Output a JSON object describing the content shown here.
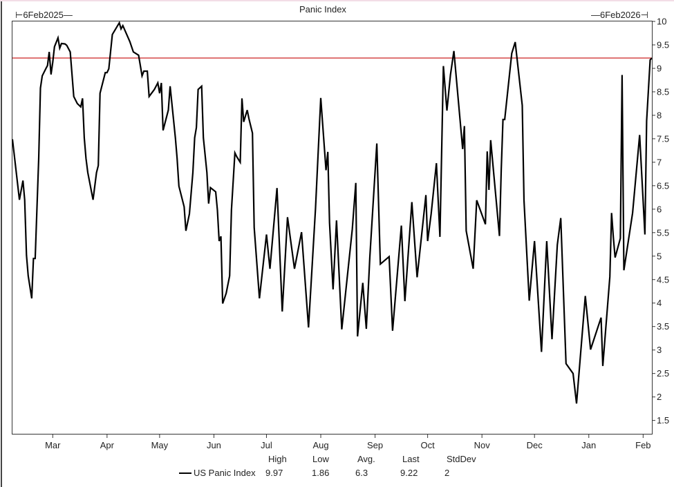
{
  "chart_data": {
    "type": "line",
    "title": "Panic Index",
    "start_label": "6Feb2025",
    "end_label": "6Feb2026",
    "xlabel": "",
    "ylabel": "",
    "xlim": [
      "2025-02-06",
      "2026-02-06"
    ],
    "ylim": [
      1.2,
      10
    ],
    "yticks": [
      1.5,
      2,
      2.5,
      3,
      3.5,
      4,
      4.5,
      5,
      5.5,
      6,
      6.5,
      7,
      7.5,
      8,
      8.5,
      9,
      9.5,
      10
    ],
    "xticks": [
      {
        "date": "2025-03-01",
        "label": "Mar"
      },
      {
        "date": "2025-04-01",
        "label": "Apr"
      },
      {
        "date": "2025-05-01",
        "label": "May"
      },
      {
        "date": "2025-06-01",
        "label": "Jun"
      },
      {
        "date": "2025-07-01",
        "label": "Jul"
      },
      {
        "date": "2025-08-01",
        "label": "Aug"
      },
      {
        "date": "2025-09-01",
        "label": "Sep"
      },
      {
        "date": "2025-10-01",
        "label": "Oct"
      },
      {
        "date": "2025-11-01",
        "label": "Nov"
      },
      {
        "date": "2025-12-01",
        "label": "Dec"
      },
      {
        "date": "2026-01-01",
        "label": "Jan"
      },
      {
        "date": "2026-02-01",
        "label": "Feb"
      }
    ],
    "grid": false,
    "reference_line": {
      "value": 9.22,
      "color": "#cc2222"
    },
    "legend_position": "bottom",
    "series": [
      {
        "name": "US Panic Index",
        "color": "#000000",
        "points": [
          [
            "2025-02-06",
            7.49
          ],
          [
            "2025-02-10",
            6.2
          ],
          [
            "2025-02-12",
            6.61
          ],
          [
            "2025-02-13",
            6.2
          ],
          [
            "2025-02-14",
            5.02
          ],
          [
            "2025-02-15",
            4.58
          ],
          [
            "2025-02-17",
            4.1
          ],
          [
            "2025-02-18",
            4.95
          ],
          [
            "2025-02-19",
            4.95
          ],
          [
            "2025-02-21",
            7.08
          ],
          [
            "2025-02-22",
            8.58
          ],
          [
            "2025-02-23",
            8.84
          ],
          [
            "2025-02-25",
            8.99
          ],
          [
            "2025-02-26",
            9.06
          ],
          [
            "2025-02-27",
            9.35
          ],
          [
            "2025-02-28",
            8.87
          ],
          [
            "2025-03-01",
            9.13
          ],
          [
            "2025-03-02",
            9.46
          ],
          [
            "2025-03-04",
            9.65
          ],
          [
            "2025-03-05",
            9.43
          ],
          [
            "2025-03-06",
            9.53
          ],
          [
            "2025-03-08",
            9.52
          ],
          [
            "2025-03-09",
            9.49
          ],
          [
            "2025-03-11",
            9.35
          ],
          [
            "2025-03-13",
            8.4
          ],
          [
            "2025-03-15",
            8.25
          ],
          [
            "2025-03-17",
            8.18
          ],
          [
            "2025-03-18",
            8.36
          ],
          [
            "2025-03-19",
            7.52
          ],
          [
            "2025-03-20",
            7.08
          ],
          [
            "2025-03-21",
            6.78
          ],
          [
            "2025-03-24",
            6.2
          ],
          [
            "2025-03-26",
            6.78
          ],
          [
            "2025-03-27",
            6.93
          ],
          [
            "2025-03-28",
            8.47
          ],
          [
            "2025-03-31",
            8.91
          ],
          [
            "2025-04-01",
            8.91
          ],
          [
            "2025-04-02",
            8.99
          ],
          [
            "2025-04-04",
            9.72
          ],
          [
            "2025-04-08",
            9.97
          ],
          [
            "2025-04-09",
            9.84
          ],
          [
            "2025-04-10",
            9.91
          ],
          [
            "2025-04-14",
            9.57
          ],
          [
            "2025-04-16",
            9.35
          ],
          [
            "2025-04-19",
            9.28
          ],
          [
            "2025-04-21",
            8.84
          ],
          [
            "2025-04-22",
            8.94
          ],
          [
            "2025-04-24",
            8.94
          ],
          [
            "2025-04-25",
            8.4
          ],
          [
            "2025-04-28",
            8.55
          ],
          [
            "2025-04-30",
            8.69
          ],
          [
            "2025-05-01",
            8.47
          ],
          [
            "2025-05-02",
            8.69
          ],
          [
            "2025-05-03",
            7.68
          ],
          [
            "2025-05-06",
            8.11
          ],
          [
            "2025-05-07",
            8.62
          ],
          [
            "2025-05-10",
            7.52
          ],
          [
            "2025-05-11",
            7.08
          ],
          [
            "2025-05-12",
            6.49
          ],
          [
            "2025-05-15",
            6.05
          ],
          [
            "2025-05-16",
            5.54
          ],
          [
            "2025-05-18",
            5.9
          ],
          [
            "2025-05-20",
            6.78
          ],
          [
            "2025-05-21",
            7.52
          ],
          [
            "2025-05-22",
            7.74
          ],
          [
            "2025-05-23",
            8.55
          ],
          [
            "2025-05-25",
            8.62
          ],
          [
            "2025-05-26",
            7.52
          ],
          [
            "2025-05-28",
            6.78
          ],
          [
            "2025-05-29",
            6.12
          ],
          [
            "2025-05-30",
            6.46
          ],
          [
            "2025-06-02",
            6.37
          ],
          [
            "2025-06-03",
            5.98
          ],
          [
            "2025-06-04",
            5.32
          ],
          [
            "2025-06-05",
            5.42
          ],
          [
            "2025-06-06",
            3.99
          ],
          [
            "2025-06-08",
            4.21
          ],
          [
            "2025-06-10",
            4.58
          ],
          [
            "2025-06-11",
            5.98
          ],
          [
            "2025-06-13",
            7.2
          ],
          [
            "2025-06-14",
            7.12
          ],
          [
            "2025-06-16",
            7.0
          ],
          [
            "2025-06-17",
            8.36
          ],
          [
            "2025-06-18",
            7.86
          ],
          [
            "2025-06-20",
            8.11
          ],
          [
            "2025-06-21",
            7.93
          ],
          [
            "2025-06-23",
            7.62
          ],
          [
            "2025-06-24",
            5.61
          ],
          [
            "2025-06-27",
            4.1
          ],
          [
            "2025-07-01",
            5.46
          ],
          [
            "2025-07-03",
            4.73
          ],
          [
            "2025-07-07",
            6.45
          ],
          [
            "2025-07-10",
            3.82
          ],
          [
            "2025-07-13",
            5.83
          ],
          [
            "2025-07-17",
            4.73
          ],
          [
            "2025-07-21",
            5.51
          ],
          [
            "2025-07-25",
            3.48
          ],
          [
            "2025-07-29",
            6.01
          ],
          [
            "2025-08-01",
            8.37
          ],
          [
            "2025-08-04",
            6.83
          ],
          [
            "2025-08-05",
            7.22
          ],
          [
            "2025-08-06",
            5.71
          ],
          [
            "2025-08-08",
            4.29
          ],
          [
            "2025-08-10",
            5.76
          ],
          [
            "2025-08-13",
            3.44
          ],
          [
            "2025-08-19",
            5.57
          ],
          [
            "2025-08-21",
            6.56
          ],
          [
            "2025-08-22",
            3.29
          ],
          [
            "2025-08-25",
            4.43
          ],
          [
            "2025-08-27",
            3.45
          ],
          [
            "2025-08-29",
            4.98
          ],
          [
            "2025-09-02",
            7.4
          ],
          [
            "2025-09-04",
            4.83
          ],
          [
            "2025-09-09",
            4.99
          ],
          [
            "2025-09-11",
            3.41
          ],
          [
            "2025-09-16",
            5.65
          ],
          [
            "2025-09-18",
            4.04
          ],
          [
            "2025-09-22",
            6.15
          ],
          [
            "2025-09-25",
            4.55
          ],
          [
            "2025-09-30",
            6.3
          ],
          [
            "2025-10-01",
            5.32
          ],
          [
            "2025-10-03",
            5.9
          ],
          [
            "2025-10-06",
            6.98
          ],
          [
            "2025-10-08",
            5.41
          ],
          [
            "2025-10-10",
            9.05
          ],
          [
            "2025-10-12",
            8.1
          ],
          [
            "2025-10-14",
            8.86
          ],
          [
            "2025-10-16",
            9.37
          ],
          [
            "2025-10-21",
            7.28
          ],
          [
            "2025-10-22",
            7.77
          ],
          [
            "2025-10-23",
            5.54
          ],
          [
            "2025-10-27",
            4.73
          ],
          [
            "2025-10-29",
            6.19
          ],
          [
            "2025-11-03",
            5.68
          ],
          [
            "2025-11-04",
            7.23
          ],
          [
            "2025-11-05",
            6.41
          ],
          [
            "2025-11-06",
            7.47
          ],
          [
            "2025-11-11",
            5.43
          ],
          [
            "2025-11-12",
            6.85
          ],
          [
            "2025-11-13",
            7.91
          ],
          [
            "2025-11-14",
            7.91
          ],
          [
            "2025-11-18",
            9.32
          ],
          [
            "2025-11-20",
            9.56
          ],
          [
            "2025-11-24",
            8.21
          ],
          [
            "2025-11-25",
            6.19
          ],
          [
            "2025-11-28",
            4.05
          ],
          [
            "2025-12-01",
            5.32
          ],
          [
            "2025-12-05",
            2.96
          ],
          [
            "2025-12-08",
            5.32
          ],
          [
            "2025-12-11",
            3.23
          ],
          [
            "2025-12-14",
            5.24
          ],
          [
            "2025-12-16",
            5.81
          ],
          [
            "2025-12-19",
            2.71
          ],
          [
            "2025-12-23",
            2.5
          ],
          [
            "2025-12-25",
            1.86
          ],
          [
            "2025-12-30",
            4.15
          ],
          [
            "2026-01-02",
            3.01
          ],
          [
            "2026-01-08",
            3.69
          ],
          [
            "2026-01-09",
            2.66
          ],
          [
            "2026-01-13",
            4.56
          ],
          [
            "2026-01-14",
            5.92
          ],
          [
            "2026-01-15",
            5.41
          ],
          [
            "2026-01-16",
            4.97
          ],
          [
            "2026-01-19",
            5.38
          ],
          [
            "2026-01-20",
            8.86
          ],
          [
            "2026-01-21",
            4.7
          ],
          [
            "2026-01-26",
            5.92
          ],
          [
            "2026-01-30",
            7.58
          ],
          [
            "2026-02-02",
            5.46
          ],
          [
            "2026-02-03",
            7.88
          ],
          [
            "2026-02-05",
            9.18
          ],
          [
            "2026-02-06",
            9.22
          ]
        ]
      }
    ],
    "legend": {
      "headers": [
        "High",
        "Low",
        "Avg.",
        "Last",
        "StdDev"
      ],
      "series_label": "US Panic Index",
      "stats": [
        "9.97",
        "1.86",
        "6.3",
        "9.22",
        "2"
      ]
    }
  }
}
